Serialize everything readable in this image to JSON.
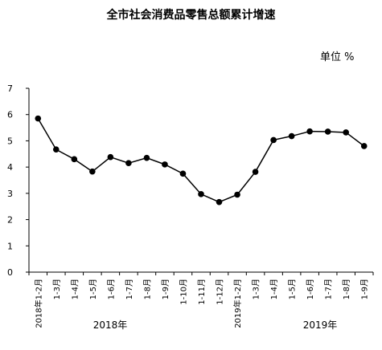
{
  "chart_data": {
    "type": "line",
    "title": "全市社会消费品零售总额累计增速",
    "unit_label": "单位 %",
    "ylim": [
      0,
      7
    ],
    "yticks": [
      "0",
      "1",
      "2",
      "3",
      "4",
      "5",
      "6",
      "7"
    ],
    "categories": [
      "2018年1-2月",
      "1-3月",
      "1-4月",
      "1-5月",
      "1-6月",
      "1-7月",
      "1-8月",
      "1-9月",
      "1-10月",
      "1-11月",
      "1-12月",
      "2019年1-2月",
      "1-3月",
      "1-4月",
      "1-5月",
      "1-6月",
      "1-7月",
      "1-8月",
      "1-9月"
    ],
    "values": [
      5.85,
      4.67,
      4.3,
      3.83,
      4.38,
      4.15,
      4.35,
      4.1,
      3.75,
      2.97,
      2.67,
      2.95,
      3.82,
      5.03,
      5.18,
      5.36,
      5.35,
      5.32,
      4.8
    ],
    "year_labels": [
      "2018年",
      "2019年"
    ],
    "grid": false,
    "legend": "none",
    "line_color": "#000000",
    "marker_color": "#000000"
  }
}
